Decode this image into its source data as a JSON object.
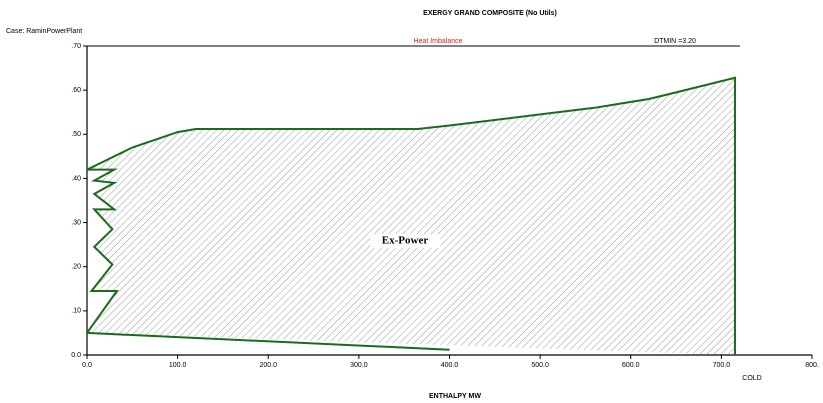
{
  "chart_data": {
    "type": "line",
    "title": "EXERGY GRAND COMPOSITE (No Utils)",
    "case_label": "Case: RaminPowerPlant",
    "warning": "Heat Imbalance",
    "dtmin": "DTMIN =3.20",
    "region_label": "Ex-Power",
    "side_label": "COLD",
    "x_label": "ENTHALPY MW",
    "color": "#1a6b1a",
    "xlim": [
      0,
      800
    ],
    "ylim": [
      0,
      0.7
    ],
    "xticks": [
      {
        "value": 0,
        "label": "0.0"
      },
      {
        "value": 100,
        "label": "100.0"
      },
      {
        "value": 200,
        "label": "200.0"
      },
      {
        "value": 300,
        "label": "300.0"
      },
      {
        "value": 400,
        "label": "400.0"
      },
      {
        "value": 500,
        "label": "500.0"
      },
      {
        "value": 600,
        "label": "600.0"
      },
      {
        "value": 700,
        "label": "700.0"
      },
      {
        "value": 800,
        "label": "800."
      }
    ],
    "yticks": [
      {
        "value": 0,
        "label": "0.0"
      },
      {
        "value": 0.1,
        "label": ".10"
      },
      {
        "value": 0.2,
        "label": ".20"
      },
      {
        "value": 0.3,
        "label": ".30"
      },
      {
        "value": 0.4,
        "label": ".40"
      },
      {
        "value": 0.5,
        "label": ".50"
      },
      {
        "value": 0.6,
        "label": ".60"
      },
      {
        "value": 0.7,
        "label": ".70"
      }
    ],
    "series": [
      {
        "x": [
          0,
          33,
          5,
          28,
          8,
          28,
          8,
          30,
          8,
          30,
          8,
          30,
          0,
          50,
          100,
          120,
          365,
          400,
          500,
          560,
          620,
          650,
          715,
          715
        ],
        "values": [
          0.05,
          0.145,
          0.145,
          0.205,
          0.245,
          0.285,
          0.33,
          0.33,
          0.365,
          0.39,
          0.395,
          0.42,
          0.42,
          0.47,
          0.505,
          0.512,
          0.512,
          0.52,
          0.545,
          0.56,
          0.58,
          0.595,
          0.628,
          0
        ]
      },
      {
        "x": [
          0,
          400
        ],
        "values": [
          0.05,
          0.012
        ]
      }
    ]
  }
}
